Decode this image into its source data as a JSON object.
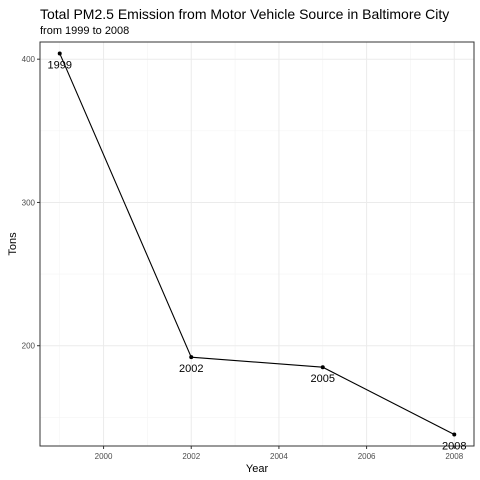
{
  "chart_data": {
    "type": "line",
    "title": "Total PM2.5 Emission from Motor Vehicle Source in Baltimore City",
    "subtitle": "from 1999 to 2008",
    "xlabel": "Year",
    "ylabel": "Tons",
    "x": [
      1999,
      2002,
      2005,
      2008
    ],
    "y": [
      404,
      192,
      185,
      138
    ],
    "point_labels": [
      "1999",
      "2002",
      "2005",
      "2008"
    ],
    "xlim": [
      1998.55,
      2008.45
    ],
    "ylim": [
      130,
      412
    ],
    "x_ticks": [
      2000,
      2002,
      2004,
      2006,
      2008
    ],
    "x_tick_labels": [
      "2000",
      "2002",
      "2004",
      "2006",
      "2008"
    ],
    "y_ticks": [
      200,
      300,
      400
    ],
    "y_tick_labels": [
      "200",
      "300",
      "400"
    ],
    "grid": true,
    "legend": "none",
    "colors": {
      "line": "#000000",
      "grid": "#ebebeb",
      "panel_border": "#333333"
    }
  }
}
